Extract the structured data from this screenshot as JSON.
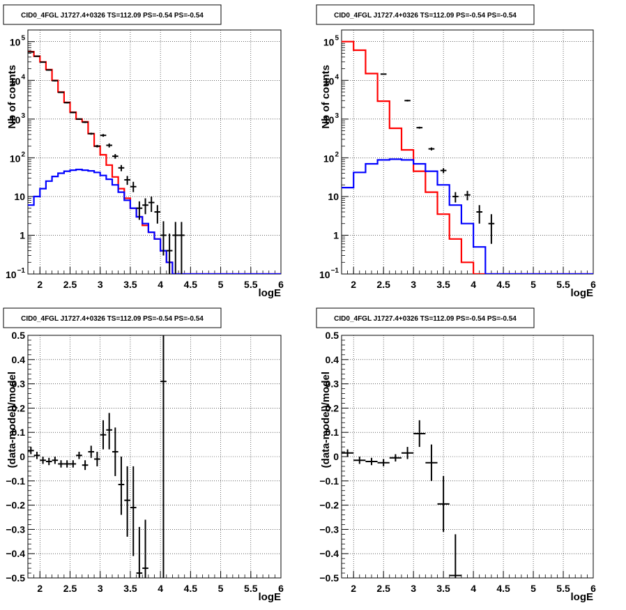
{
  "chart_data": [
    {
      "type": "line",
      "title": "CID0_4FGL J1727.4+0326 TS=112.09 PS=-0.54 PS=-0.54",
      "xlabel": "logE",
      "ylabel": "Nb of counts",
      "xlim": [
        1.8,
        6.0
      ],
      "ylim": [
        0.1,
        200000
      ],
      "yscale": "log",
      "grid": true,
      "x_ticks": [
        "2",
        "2.5",
        "3",
        "3.5",
        "4",
        "4.5",
        "5",
        "5.5",
        "6"
      ],
      "y_ticks": [
        {
          "value": 0.1,
          "base": "10",
          "exp": "−1"
        },
        {
          "value": 1,
          "label": "1"
        },
        {
          "value": 10,
          "label": "10"
        },
        {
          "value": 100,
          "base": "10",
          "exp": "2"
        },
        {
          "value": 1000,
          "base": "10",
          "exp": "3"
        },
        {
          "value": 10000,
          "base": "10",
          "exp": "4"
        },
        {
          "value": 100000,
          "base": "10",
          "exp": "5"
        }
      ],
      "bin_edges": [
        1.8,
        1.9,
        2.0,
        2.1,
        2.2,
        2.3,
        2.4,
        2.5,
        2.6,
        2.7,
        2.8,
        2.9,
        3.0,
        3.1,
        3.2,
        3.3,
        3.4,
        3.5,
        3.6,
        3.7,
        3.8,
        3.9,
        4.0,
        4.1,
        4.2,
        4.3,
        4.4,
        4.5,
        4.6,
        4.7,
        4.8,
        4.9,
        5.0,
        5.1,
        5.2,
        5.3,
        5.4,
        5.5,
        5.6,
        5.7,
        5.8,
        5.9,
        6.0
      ],
      "series": [
        {
          "color": "#ff0000",
          "style": "hist",
          "values": [
            55000,
            42000,
            30000,
            19000,
            10000,
            5000,
            2700,
            1500,
            1000,
            850,
            420,
            200,
            120,
            65,
            32,
            16,
            9,
            5,
            3,
            1.8,
            1.2,
            0.8,
            0.4,
            0.2,
            0.09,
            0.09,
            0.09,
            0.09,
            0.09,
            0.09,
            0.09,
            0.09,
            0.09,
            0.09,
            0.09,
            0.09,
            0.09,
            0.09,
            0.09,
            0.09,
            0.09,
            0.09
          ]
        },
        {
          "color": "#0000ff",
          "style": "hist",
          "values": [
            6,
            10,
            16,
            25,
            33,
            40,
            45,
            48,
            50,
            48,
            46,
            42,
            35,
            28,
            20,
            13,
            8,
            5,
            3,
            2,
            1.2,
            0.8,
            0.4,
            0.2,
            0.1,
            0.1,
            0.1,
            0.1,
            0.1,
            0.1,
            0.1,
            0.1,
            0.1,
            0.1,
            0.1,
            0.1,
            0.1,
            0.1,
            0.1,
            0.1,
            0.1,
            0.1
          ]
        },
        {
          "color": "#000000",
          "style": "points",
          "points": [
            {
              "x": 1.85,
              "y": 54000,
              "ylo": 52000,
              "yhi": 56000
            },
            {
              "x": 1.95,
              "y": 42000,
              "ylo": 40500,
              "yhi": 43500
            },
            {
              "x": 2.05,
              "y": 29500,
              "ylo": 28500,
              "yhi": 30500
            },
            {
              "x": 2.15,
              "y": 18500,
              "ylo": 17800,
              "yhi": 19200
            },
            {
              "x": 2.25,
              "y": 9800,
              "ylo": 9400,
              "yhi": 10200
            },
            {
              "x": 2.35,
              "y": 4900,
              "ylo": 4700,
              "yhi": 5100
            },
            {
              "x": 2.45,
              "y": 2650,
              "ylo": 2550,
              "yhi": 2750
            },
            {
              "x": 2.55,
              "y": 1480,
              "ylo": 1420,
              "yhi": 1540
            },
            {
              "x": 2.65,
              "y": 1000,
              "ylo": 960,
              "yhi": 1040
            },
            {
              "x": 2.75,
              "y": 830,
              "ylo": 790,
              "yhi": 870
            },
            {
              "x": 2.85,
              "y": 420,
              "ylo": 395,
              "yhi": 445
            },
            {
              "x": 2.95,
              "y": 200,
              "ylo": 185,
              "yhi": 215
            },
            {
              "x": 3.05,
              "y": 380,
              "ylo": 350,
              "yhi": 410
            },
            {
              "x": 3.15,
              "y": 210,
              "ylo": 185,
              "yhi": 235
            },
            {
              "x": 3.25,
              "y": 110,
              "ylo": 95,
              "yhi": 125
            },
            {
              "x": 3.35,
              "y": 55,
              "ylo": 45,
              "yhi": 65
            },
            {
              "x": 3.45,
              "y": 27,
              "ylo": 20,
              "yhi": 34
            },
            {
              "x": 3.55,
              "y": 18,
              "ylo": 13,
              "yhi": 24
            },
            {
              "x": 3.65,
              "y": 5,
              "ylo": 2.5,
              "yhi": 7.5
            },
            {
              "x": 3.75,
              "y": 6,
              "ylo": 3.5,
              "yhi": 9
            },
            {
              "x": 3.85,
              "y": 7,
              "ylo": 4,
              "yhi": 10
            },
            {
              "x": 3.95,
              "y": 4,
              "ylo": 2,
              "yhi": 6
            },
            {
              "x": 4.05,
              "y": 1,
              "ylo": 0.3,
              "yhi": 2.3
            },
            {
              "x": 4.15,
              "y": 0.4,
              "ylo": 0.1,
              "yhi": 1.1
            },
            {
              "x": 4.25,
              "y": 1,
              "ylo": 0.1,
              "yhi": 2.2
            },
            {
              "x": 4.35,
              "y": 1,
              "ylo": 0.1,
              "yhi": 2.2
            }
          ]
        }
      ]
    },
    {
      "type": "line",
      "title": "CID0_4FGL J1727.4+0326 TS=112.09 PS=-0.54 PS=-0.54",
      "xlabel": "logE",
      "ylabel": "Nb of counts",
      "xlim": [
        1.8,
        6.0
      ],
      "ylim": [
        0.1,
        200000
      ],
      "yscale": "log",
      "grid": true,
      "x_ticks": [
        "2",
        "2.5",
        "3",
        "3.5",
        "4",
        "4.5",
        "5",
        "5.5",
        "6"
      ],
      "y_ticks": [
        {
          "value": 0.1,
          "base": "10",
          "exp": "−1"
        },
        {
          "value": 1,
          "label": "1"
        },
        {
          "value": 10,
          "label": "10"
        },
        {
          "value": 100,
          "base": "10",
          "exp": "2"
        },
        {
          "value": 1000,
          "base": "10",
          "exp": "3"
        },
        {
          "value": 10000,
          "base": "10",
          "exp": "4"
        },
        {
          "value": 100000,
          "base": "10",
          "exp": "5"
        }
      ],
      "bin_edges": [
        1.8,
        2.0,
        2.2,
        2.4,
        2.6,
        2.8,
        3.0,
        3.2,
        3.4,
        3.6,
        3.8,
        4.0,
        4.2,
        4.4,
        4.6,
        4.8,
        5.0,
        5.2,
        5.4,
        5.6,
        5.8,
        6.0
      ],
      "series": [
        {
          "color": "#ff0000",
          "style": "hist",
          "values": [
            100000,
            60000,
            15000,
            2900,
            580,
            160,
            45,
            13,
            3.5,
            0.8,
            0.2,
            0.09,
            0.09,
            0.09,
            0.09,
            0.09,
            0.09,
            0.09,
            0.09,
            0.09,
            0.09
          ]
        },
        {
          "color": "#0000ff",
          "style": "hist",
          "values": [
            17,
            42,
            70,
            88,
            92,
            88,
            70,
            45,
            20,
            6,
            2,
            0.5,
            0.1,
            0.1,
            0.1,
            0.1,
            0.1,
            0.1,
            0.1,
            0.1,
            0.1
          ]
        },
        {
          "color": "#000000",
          "style": "points",
          "points": [
            {
              "x": 2.5,
              "y": 14500,
              "ylo": 14000,
              "yhi": 15000
            },
            {
              "x": 2.9,
              "y": 3000,
              "ylo": 2850,
              "yhi": 3150
            },
            {
              "x": 3.1,
              "y": 600,
              "ylo": 565,
              "yhi": 635
            },
            {
              "x": 3.3,
              "y": 170,
              "ylo": 155,
              "yhi": 185
            },
            {
              "x": 3.5,
              "y": 47,
              "ylo": 40,
              "yhi": 54
            },
            {
              "x": 3.7,
              "y": 10,
              "ylo": 7,
              "yhi": 13
            },
            {
              "x": 3.9,
              "y": 11,
              "ylo": 8,
              "yhi": 14
            },
            {
              "x": 4.1,
              "y": 4,
              "ylo": 2,
              "yhi": 6
            },
            {
              "x": 4.3,
              "y": 2,
              "ylo": 0.6,
              "yhi": 3.5
            }
          ]
        }
      ]
    },
    {
      "type": "scatter",
      "title": "CID0_4FGL J1727.4+0326 TS=112.09 PS=-0.54 PS=-0.54",
      "xlabel": "logE",
      "ylabel": "(data-model)/model",
      "xlim": [
        1.8,
        6.0
      ],
      "ylim": [
        -0.5,
        0.5
      ],
      "grid": true,
      "x_ticks": [
        "2",
        "2.5",
        "3",
        "3.5",
        "4",
        "4.5",
        "5",
        "5.5",
        "6"
      ],
      "y_ticks": [
        "−0.5",
        "−0.4",
        "−0.3",
        "−0.2",
        "−0.1",
        "0",
        "0.1",
        "0.2",
        "0.3",
        "0.4",
        "0.5"
      ],
      "series": [
        {
          "color": "#000000",
          "style": "points",
          "xerr": 0.05,
          "points": [
            {
              "x": 1.85,
              "y": 0.025,
              "ylo": 0.01,
              "yhi": 0.04
            },
            {
              "x": 1.95,
              "y": 0.005,
              "ylo": -0.01,
              "yhi": 0.02
            },
            {
              "x": 2.05,
              "y": -0.015,
              "ylo": -0.03,
              "yhi": 0.0
            },
            {
              "x": 2.15,
              "y": -0.02,
              "ylo": -0.035,
              "yhi": -0.005
            },
            {
              "x": 2.25,
              "y": -0.015,
              "ylo": -0.03,
              "yhi": 0.0
            },
            {
              "x": 2.35,
              "y": -0.03,
              "ylo": -0.045,
              "yhi": -0.015
            },
            {
              "x": 2.45,
              "y": -0.03,
              "ylo": -0.045,
              "yhi": -0.015
            },
            {
              "x": 2.55,
              "y": -0.03,
              "ylo": -0.045,
              "yhi": -0.015
            },
            {
              "x": 2.65,
              "y": 0.005,
              "ylo": -0.01,
              "yhi": 0.02
            },
            {
              "x": 2.75,
              "y": -0.035,
              "ylo": -0.055,
              "yhi": -0.015
            },
            {
              "x": 2.85,
              "y": 0.02,
              "ylo": -0.005,
              "yhi": 0.045
            },
            {
              "x": 2.95,
              "y": -0.01,
              "ylo": -0.04,
              "yhi": 0.02
            },
            {
              "x": 3.05,
              "y": 0.09,
              "ylo": 0.03,
              "yhi": 0.15
            },
            {
              "x": 3.15,
              "y": 0.11,
              "ylo": 0.03,
              "yhi": 0.18
            },
            {
              "x": 3.25,
              "y": 0.02,
              "ylo": -0.08,
              "yhi": 0.12
            },
            {
              "x": 3.35,
              "y": -0.115,
              "ylo": -0.24,
              "yhi": 0.0
            },
            {
              "x": 3.45,
              "y": -0.18,
              "ylo": -0.33,
              "yhi": -0.04
            },
            {
              "x": 3.55,
              "y": -0.21,
              "ylo": -0.41,
              "yhi": -0.04
            },
            {
              "x": 3.65,
              "y": -0.48,
              "ylo": -0.5,
              "yhi": -0.29
            },
            {
              "x": 3.75,
              "y": -0.46,
              "ylo": -0.5,
              "yhi": -0.26
            },
            {
              "x": 4.05,
              "y": 0.31,
              "ylo": -0.5,
              "yhi": 0.5
            }
          ]
        }
      ]
    },
    {
      "type": "scatter",
      "title": "CID0_4FGL J1727.4+0326 TS=112.09 PS=-0.54 PS=-0.54",
      "xlabel": "logE",
      "ylabel": "(data-model)/model",
      "xlim": [
        1.8,
        6.0
      ],
      "ylim": [
        -0.5,
        0.5
      ],
      "grid": true,
      "x_ticks": [
        "2",
        "2.5",
        "3",
        "3.5",
        "4",
        "4.5",
        "5",
        "5.5",
        "6"
      ],
      "y_ticks": [
        "−0.5",
        "−0.4",
        "−0.3",
        "−0.2",
        "−0.1",
        "0",
        "0.1",
        "0.2",
        "0.3",
        "0.4",
        "0.5"
      ],
      "series": [
        {
          "color": "#000000",
          "style": "points",
          "xerr": 0.1,
          "points": [
            {
              "x": 1.9,
              "y": 0.015,
              "ylo": 0.0,
              "yhi": 0.03
            },
            {
              "x": 2.1,
              "y": -0.015,
              "ylo": -0.03,
              "yhi": 0.0
            },
            {
              "x": 2.3,
              "y": -0.02,
              "ylo": -0.035,
              "yhi": -0.005
            },
            {
              "x": 2.5,
              "y": -0.025,
              "ylo": -0.04,
              "yhi": -0.01
            },
            {
              "x": 2.7,
              "y": -0.005,
              "ylo": -0.02,
              "yhi": 0.01
            },
            {
              "x": 2.9,
              "y": 0.015,
              "ylo": -0.01,
              "yhi": 0.04
            },
            {
              "x": 3.1,
              "y": 0.095,
              "ylo": 0.04,
              "yhi": 0.15
            },
            {
              "x": 3.3,
              "y": -0.025,
              "ylo": -0.1,
              "yhi": 0.05
            },
            {
              "x": 3.5,
              "y": -0.195,
              "ylo": -0.31,
              "yhi": -0.08
            },
            {
              "x": 3.7,
              "y": -0.49,
              "ylo": -0.5,
              "yhi": -0.32
            }
          ]
        }
      ]
    }
  ]
}
